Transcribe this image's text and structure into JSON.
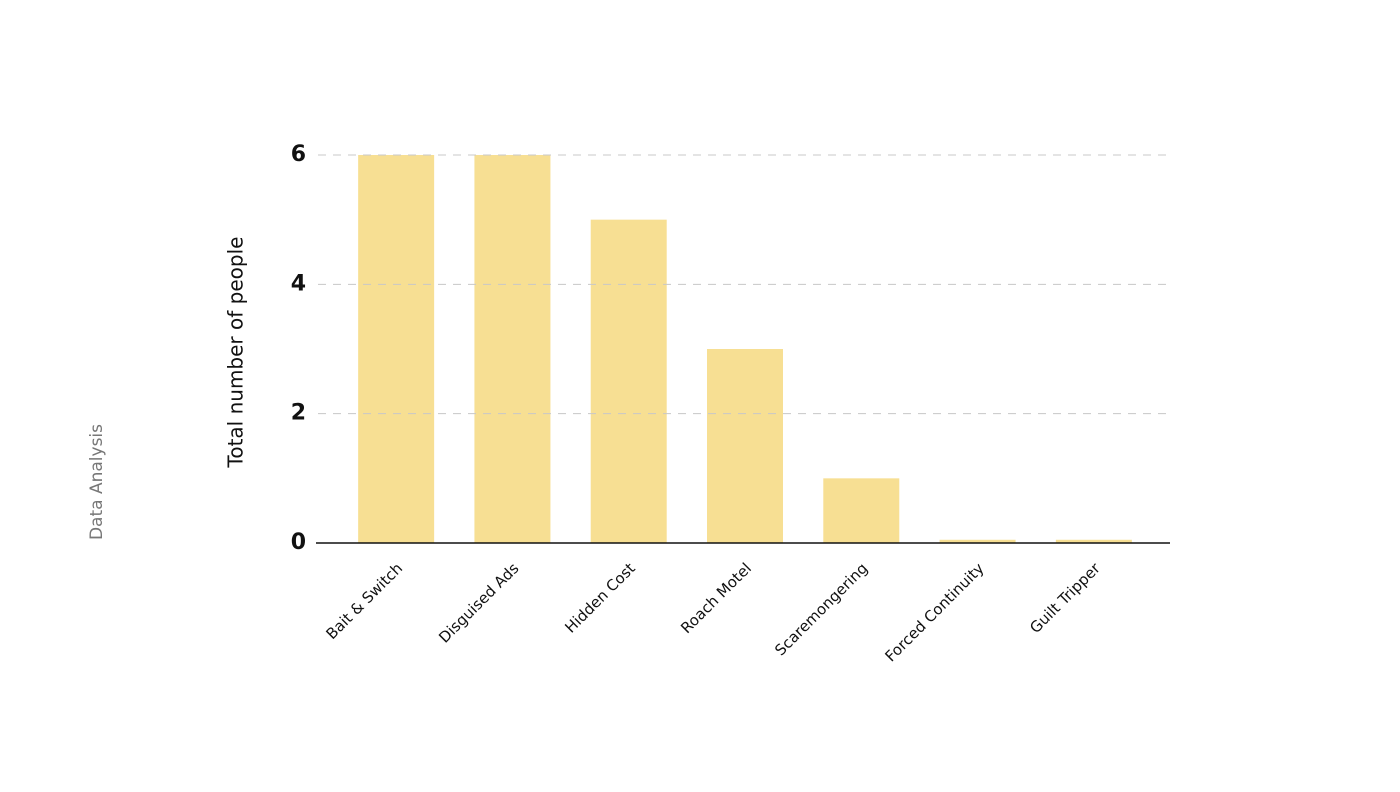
{
  "page": {
    "section_label": "Data Analysis"
  },
  "chart_data": {
    "type": "bar",
    "y_label": "Total number of people",
    "categories": [
      "Bait & Switch",
      "Disguised Ads",
      "Hidden Cost",
      "Roach Motel",
      "Scaremongering",
      "Forced Continuity",
      "Guilt Tripper"
    ],
    "values": [
      6,
      6,
      5,
      3,
      1,
      0.05,
      0.05
    ],
    "color": "#f7df93",
    "ylim": [
      0,
      6
    ],
    "yticks": [
      0,
      2,
      4,
      6
    ],
    "grid": true
  }
}
